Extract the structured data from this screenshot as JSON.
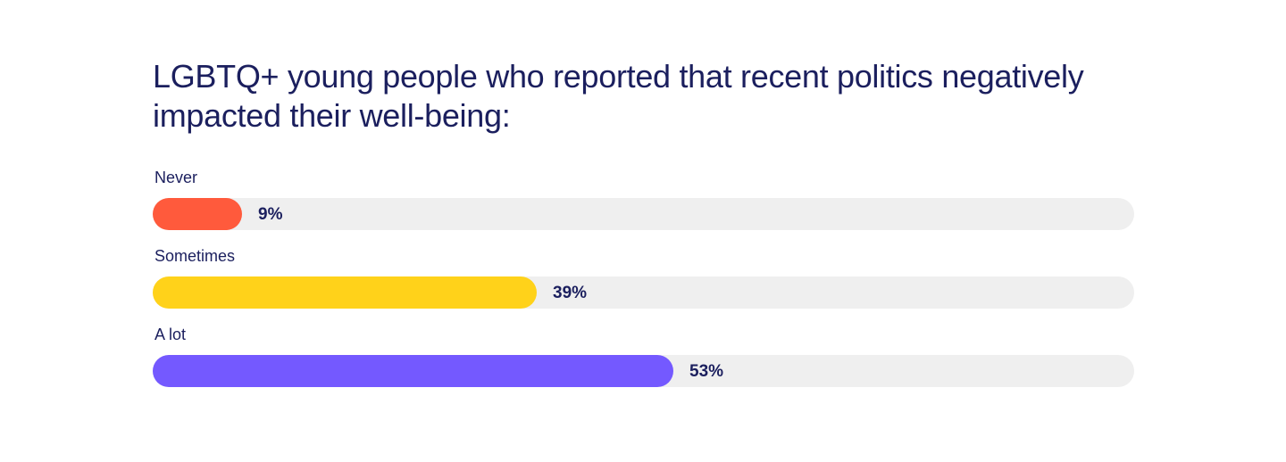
{
  "chart_data": {
    "type": "bar",
    "orientation": "horizontal",
    "title": "LGBTQ+ young people who reported that recent politics negatively impacted their well-being:",
    "categories": [
      "Never",
      "Sometimes",
      "A lot"
    ],
    "values": [
      9,
      39,
      53
    ],
    "value_labels": [
      "9%",
      "39%",
      "53%"
    ],
    "xlim": [
      0,
      100
    ],
    "grid": false,
    "legend": "none",
    "colors": [
      "#ff5a3c",
      "#ffd21a",
      "#7459ff"
    ],
    "track_color": "#efefef"
  }
}
